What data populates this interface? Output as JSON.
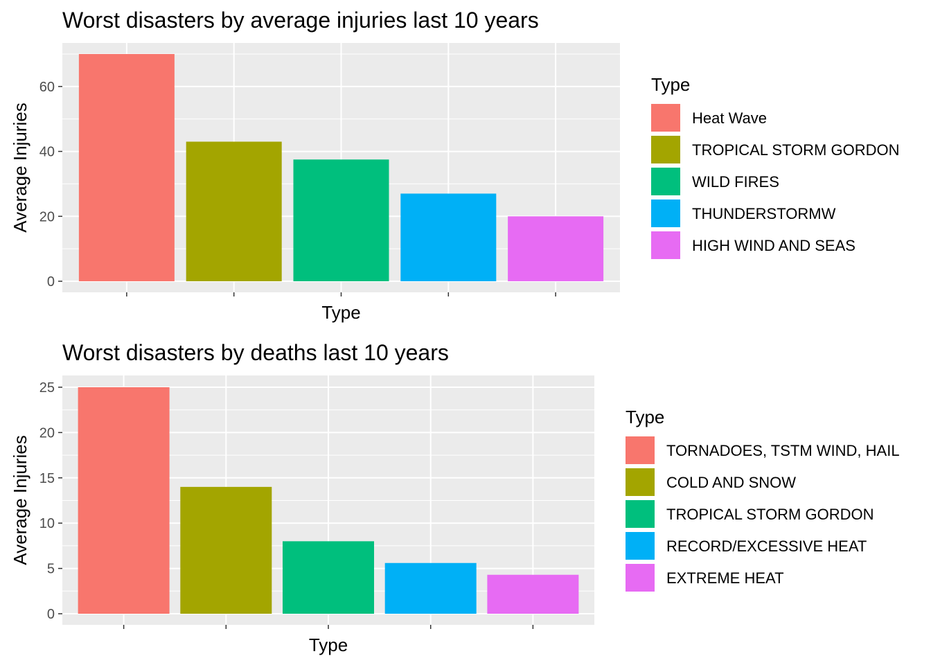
{
  "chart_data": [
    {
      "type": "bar",
      "title": "Worst disasters by average injuries last 10 years",
      "xlabel": "Type",
      "ylabel": "Average Injuries",
      "ylim": [
        0,
        70
      ],
      "yticks": [
        0,
        20,
        40,
        60
      ],
      "grid": true,
      "legend_placement": "right",
      "legend_title": "Type",
      "categories": [
        "Heat Wave",
        "TROPICAL STORM GORDON",
        "WILD FIRES",
        "THUNDERSTORMW",
        "HIGH WIND AND SEAS"
      ],
      "values": [
        70,
        43,
        37.5,
        27,
        20
      ],
      "colors": [
        "#F8766D",
        "#A3A500",
        "#00BF7D",
        "#00B0F6",
        "#E76BF3"
      ]
    },
    {
      "type": "bar",
      "title": "Worst disasters by deaths last 10 years",
      "xlabel": "Type",
      "ylabel": "Average Injuries",
      "ylim": [
        0,
        25
      ],
      "yticks": [
        0,
        5,
        10,
        15,
        20,
        25
      ],
      "grid": true,
      "legend_placement": "right",
      "legend_title": "Type",
      "categories": [
        "TORNADOES, TSTM WIND, HAIL",
        "COLD AND SNOW",
        "TROPICAL STORM GORDON",
        "RECORD/EXCESSIVE HEAT",
        "EXTREME HEAT"
      ],
      "values": [
        25,
        14,
        8,
        5.6,
        4.3
      ],
      "colors": [
        "#F8766D",
        "#A3A500",
        "#00BF7D",
        "#00B0F6",
        "#E76BF3"
      ]
    }
  ]
}
